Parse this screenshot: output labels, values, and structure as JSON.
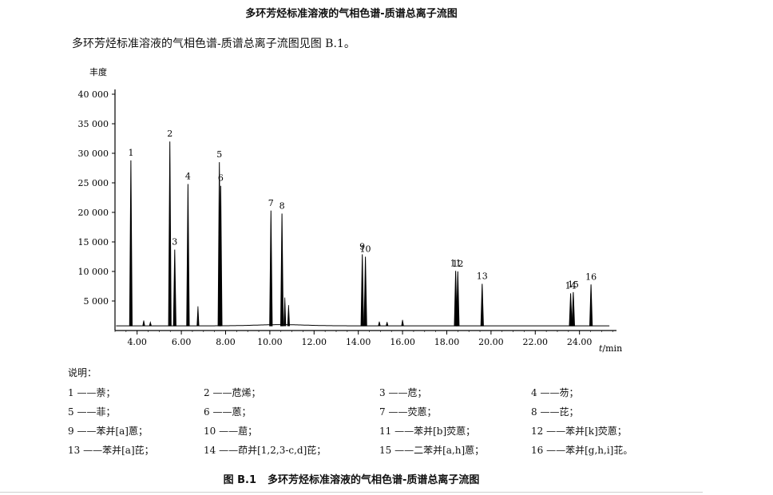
{
  "heading": "多环芳烃标准溶液的气相色谱-质谱总离子流图",
  "intro": "多环芳烃标准溶液的气相色谱-质谱总离子流图见图 B.1。",
  "chart_data": {
    "type": "line",
    "ylabel": "丰度",
    "xlabel_italic": "t",
    "xlabel_unit": "/min",
    "xlim": [
      3.0,
      25.6
    ],
    "ylim": [
      0,
      40000
    ],
    "xticks": [
      "4.00",
      "6.00",
      "8.00",
      "10.00",
      "12.00",
      "14.00",
      "16.00",
      "18.00",
      "20.00",
      "22.00",
      "24.00"
    ],
    "yticks": [
      "5 000",
      "10 000",
      "15 000",
      "20 000",
      "25 000",
      "30 000",
      "35 000",
      "40 000"
    ],
    "peaks": [
      {
        "label": "1",
        "t": 3.72,
        "height": 28800
      },
      {
        "label": "2",
        "t": 5.48,
        "height": 32000
      },
      {
        "label": "3",
        "t": 5.7,
        "height": 13700
      },
      {
        "label": "4",
        "t": 6.3,
        "height": 24800
      },
      {
        "label": "5",
        "t": 7.72,
        "height": 28500
      },
      {
        "label": "6",
        "t": 7.78,
        "height": 24500
      },
      {
        "label": "7",
        "t": 10.05,
        "height": 20300
      },
      {
        "label": "8",
        "t": 10.55,
        "height": 19800
      },
      {
        "label": "9",
        "t": 14.18,
        "height": 12900
      },
      {
        "label": "10",
        "t": 14.32,
        "height": 12500
      },
      {
        "label": "11",
        "t": 18.4,
        "height": 10100
      },
      {
        "label": "12",
        "t": 18.5,
        "height": 10000
      },
      {
        "label": "13",
        "t": 19.6,
        "height": 7900
      },
      {
        "label": "14",
        "t": 23.6,
        "height": 6300
      },
      {
        "label": "15",
        "t": 23.72,
        "height": 6500
      },
      {
        "label": "16",
        "t": 24.52,
        "height": 7800
      }
    ],
    "minor_peaks": [
      {
        "t": 4.3,
        "height": 900
      },
      {
        "t": 4.6,
        "height": 600
      },
      {
        "t": 6.75,
        "height": 3300
      },
      {
        "t": 10.68,
        "height": 4800
      },
      {
        "t": 10.85,
        "height": 3500
      },
      {
        "t": 14.95,
        "height": 700
      },
      {
        "t": 15.3,
        "height": 650
      },
      {
        "t": 16.0,
        "height": 1000
      }
    ]
  },
  "legend": {
    "title": "说明：",
    "items": [
      {
        "num": "1",
        "name": "萘；"
      },
      {
        "num": "2",
        "name": "苊烯；"
      },
      {
        "num": "3",
        "name": "苊；"
      },
      {
        "num": "4",
        "name": "芴；"
      },
      {
        "num": "5",
        "name": "菲；"
      },
      {
        "num": "6",
        "name": "蒽；"
      },
      {
        "num": "7",
        "name": "荧蒽；"
      },
      {
        "num": "8",
        "name": "芘；"
      },
      {
        "num": "9",
        "name": "苯并[a]蒽；"
      },
      {
        "num": "10",
        "name": "䓛；"
      },
      {
        "num": "11",
        "name": "苯并[b]荧蒽；"
      },
      {
        "num": "12",
        "name": "苯并[k]荧蒽；"
      },
      {
        "num": "13",
        "name": "苯并[a]芘；"
      },
      {
        "num": "14",
        "name": "茚并[1,2,3-c,d]芘；"
      },
      {
        "num": "15",
        "name": "二苯并[a,h]蒽；"
      },
      {
        "num": "16",
        "name": "苯并[g,h,i]苝。"
      }
    ]
  },
  "caption": {
    "number": "图 B.1",
    "title": "多环芳烃标准溶液的气相色谱-质谱总离子流图"
  }
}
